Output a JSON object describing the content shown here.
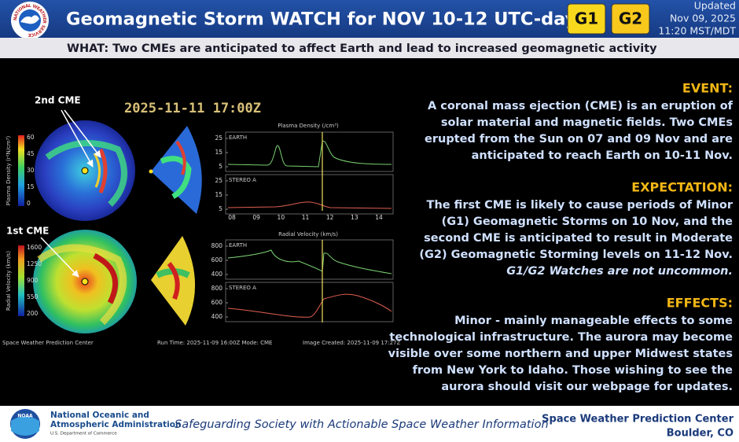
{
  "header": {
    "logo_text": "NATIONAL WEATHER SERVICE",
    "title": "Geomagnetic Storm WATCH for NOV 10-12 UTC-day",
    "badges": [
      "G1",
      "G2"
    ],
    "updated": [
      "Updated",
      "Nov 09, 2025",
      "11:20 MST/MDT"
    ],
    "what": "WHAT: Two CMEs are anticipated to affect Earth and lead to increased geomagnetic activity"
  },
  "model_image": {
    "timestamp": "2025-11-11  17:00Z",
    "annotations": [
      "2nd CME",
      "1st CME"
    ],
    "density_colorbar": {
      "label": "Plasma Density (r²N/cm³)",
      "ticks": [
        "60",
        "45",
        "30",
        "15",
        "0"
      ]
    },
    "velocity_colorbar": {
      "label": "Radial Velocity (km/s)",
      "ticks": [
        "1600",
        "1250",
        "900",
        "550",
        "200"
      ]
    },
    "density_plot": {
      "title": "Plasma Density (/cm³)",
      "panels": [
        "EARTH",
        "STEREO A"
      ],
      "yticks": [
        "25",
        "15",
        "5"
      ]
    },
    "velocity_plot": {
      "title": "Radial Velocity (km/s)",
      "panels": [
        "EARTH",
        "STEREO A"
      ],
      "yticks": [
        "800",
        "600",
        "400"
      ]
    },
    "xticks": [
      "08",
      "09",
      "10",
      "11",
      "12",
      "13",
      "14"
    ],
    "credits": [
      "Space Weather Prediction Center",
      "Run Time: 2025-11-09 16:00Z   Mode: CME",
      "Image Created: 2025-11-09 17:27Z"
    ]
  },
  "sections": [
    {
      "heading": "EVENT:",
      "lines": [
        "A coronal mass ejection (CME) is an eruption of",
        "solar material and magnetic fields. Two CMEs",
        "erupted from the Sun on 07 and 09 Nov and are",
        "anticipated to reach Earth on 10-11 Nov."
      ]
    },
    {
      "heading": "EXPECTATION:",
      "lines": [
        "The first CME is likely to cause periods of Minor",
        "(G1) Geomagnetic Storms on 10 Nov, and the",
        "second CME is anticipated to result in Moderate",
        "(G2) Geomagnetic Storming levels on 11-12 Nov."
      ],
      "note": "G1/G2 Watches are not uncommon."
    },
    {
      "heading": "EFFECTS:",
      "lines": [
        "Minor - mainly manageable effects to some",
        "technological infrastructure. The aurora may become",
        "visible over some northern and upper Midwest states",
        "from New York to Idaho. Those wishing to see the",
        "aurora should visit our webpage for updates."
      ]
    }
  ],
  "footer": {
    "logo_text": "NOAA",
    "agency": [
      "National Oceanic and",
      "Atmospheric Administration"
    ],
    "department": "U.S. Department of Commerce",
    "tagline": "Safeguarding Society with Actionable Space Weather Information",
    "center": [
      "Space Weather Prediction Center",
      "Boulder, CO"
    ]
  }
}
